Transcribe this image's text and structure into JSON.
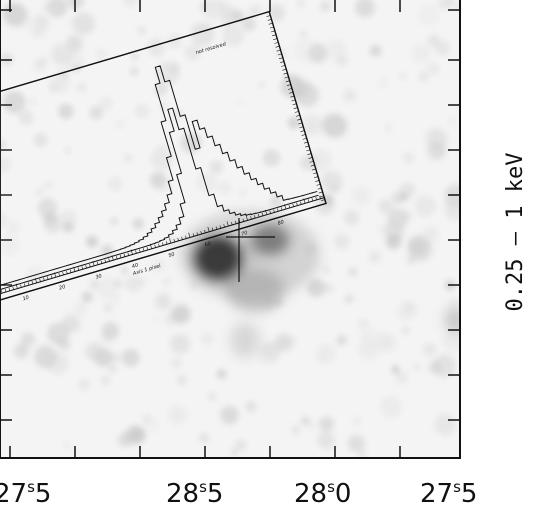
{
  "figure": {
    "band_label": "0.25 – 1 keV",
    "x_axis": {
      "tick_labels": [
        {
          "main": "27",
          "sup": "s",
          "frac": "5"
        },
        {
          "main": "28",
          "sup": "s",
          "frac": "5"
        },
        {
          "main": "28",
          "sup": "s",
          "frac": "0"
        },
        {
          "main": "27",
          "sup": "s",
          "frac": "5"
        }
      ]
    },
    "inset": {
      "title": "not resolved",
      "axis_label": "Axis 1 pixel",
      "tick_labels": [
        "10",
        "20",
        "30",
        "40",
        "50",
        "60",
        "70",
        "80"
      ]
    }
  }
}
